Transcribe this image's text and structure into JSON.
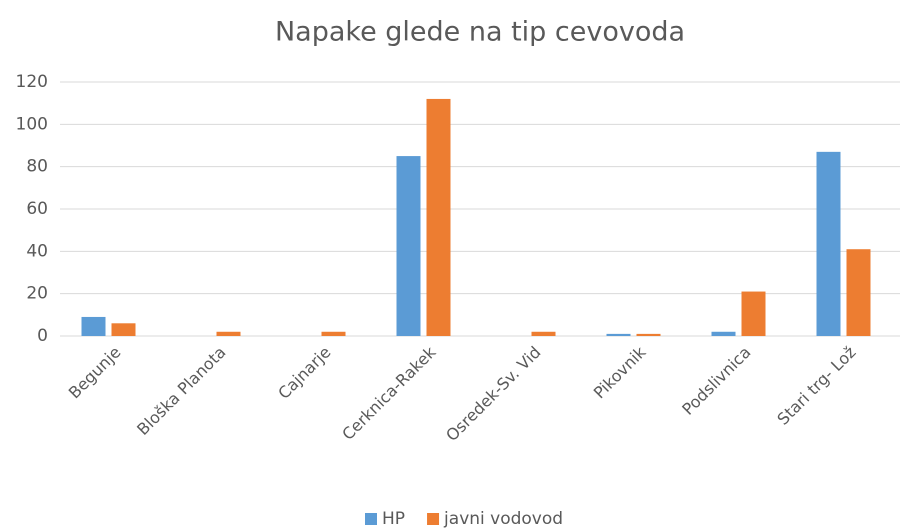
{
  "chart_data": {
    "type": "bar",
    "title": "Napake glede na tip cevovoda",
    "categories": [
      "Begunje",
      "Bloška Planota",
      "Cajnarje",
      "Cerknica-Rakek",
      "Osredek-Sv. Vid",
      "Pikovnik",
      "Podslivnica",
      "Stari trg- Lož"
    ],
    "series": [
      {
        "name": "HP",
        "color": "#5b9bd5",
        "values": [
          9,
          0,
          0,
          85,
          0,
          1,
          2,
          87
        ]
      },
      {
        "name": "javni vodovod",
        "color": "#ed7d31",
        "values": [
          6,
          2,
          2,
          112,
          2,
          1,
          21,
          41
        ]
      }
    ],
    "ylim": [
      0,
      120
    ],
    "yticks": [
      0,
      20,
      40,
      60,
      80,
      100,
      120
    ],
    "grid": true,
    "legend": "bottom"
  }
}
